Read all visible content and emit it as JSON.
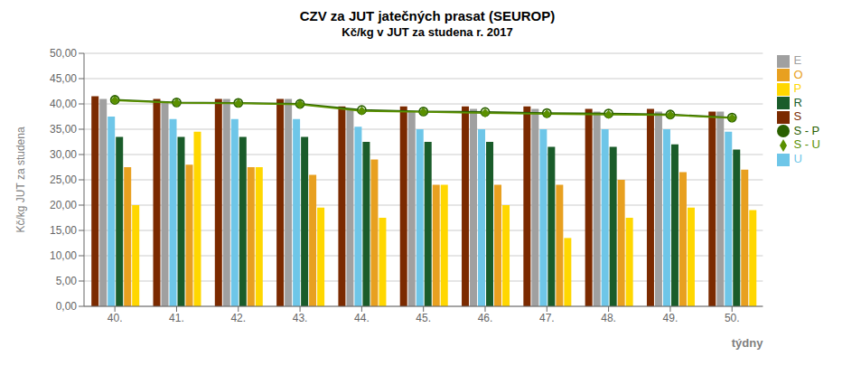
{
  "chart_data": {
    "type": "bar",
    "title": "CZV za JUT jatečných prasat (SEUROP)",
    "subtitle": "Kč/kg v JUT za studena r. 2017",
    "xlabel": "týdny",
    "ylabel": "Kč/kg JUT za studena",
    "categories": [
      "40.",
      "41.",
      "42.",
      "43.",
      "44.",
      "45.",
      "46.",
      "47.",
      "48.",
      "49.",
      "50."
    ],
    "series": [
      {
        "name": "S",
        "type": "bar",
        "color": "#7B2A00",
        "values": [
          41.5,
          41.0,
          41.0,
          41.0,
          39.5,
          39.5,
          39.5,
          39.5,
          39.0,
          39.0,
          38.5
        ]
      },
      {
        "name": "E",
        "type": "bar",
        "color": "#A0A0A0",
        "values": [
          41.0,
          40.5,
          41.0,
          41.0,
          39.0,
          38.5,
          39.0,
          39.0,
          38.5,
          38.5,
          38.5
        ]
      },
      {
        "name": "U",
        "type": "bar",
        "color": "#6EC6E8",
        "values": [
          37.5,
          37.0,
          37.0,
          37.0,
          35.5,
          35.0,
          35.0,
          35.0,
          35.0,
          35.0,
          34.5
        ]
      },
      {
        "name": "R",
        "type": "bar",
        "color": "#1A5C2A",
        "values": [
          33.5,
          33.5,
          33.5,
          33.5,
          32.5,
          32.5,
          32.5,
          31.5,
          31.5,
          32.0,
          31.0
        ]
      },
      {
        "name": "O",
        "type": "bar",
        "color": "#E8A020",
        "values": [
          27.5,
          28.0,
          27.5,
          26.0,
          29.0,
          24.0,
          24.0,
          24.0,
          25.0,
          26.5,
          27.0
        ]
      },
      {
        "name": "P",
        "type": "bar",
        "color": "#FFD700",
        "values": [
          20.0,
          34.5,
          27.5,
          19.5,
          17.5,
          24.0,
          20.0,
          13.5,
          17.5,
          19.5,
          19.0
        ]
      },
      {
        "name": "S - P",
        "type": "line",
        "color": "#2A6000",
        "marker": "circle",
        "values": [
          40.8,
          40.3,
          40.2,
          40.0,
          38.8,
          38.5,
          38.4,
          38.2,
          38.1,
          37.9,
          37.3
        ]
      },
      {
        "name": "S - U",
        "type": "line",
        "color": "#5A9000",
        "marker": "diamond",
        "values": [
          40.7,
          40.2,
          40.1,
          39.9,
          38.6,
          38.4,
          38.2,
          38.0,
          37.9,
          37.8,
          37.2
        ]
      }
    ],
    "ylim": [
      0,
      50
    ],
    "yticks": [
      {
        "value": 0,
        "label": "0,00"
      },
      {
        "value": 5,
        "label": "5,00"
      },
      {
        "value": 10,
        "label": "10,00"
      },
      {
        "value": 15,
        "label": "15,00"
      },
      {
        "value": 20,
        "label": "20,00"
      },
      {
        "value": 25,
        "label": "25,00"
      },
      {
        "value": 30,
        "label": "30,00"
      },
      {
        "value": 35,
        "label": "35,00"
      },
      {
        "value": 40,
        "label": "40,00"
      },
      {
        "value": 45,
        "label": "45,00"
      },
      {
        "value": 50,
        "label": "50,00"
      }
    ],
    "grid": true,
    "legend": "right"
  }
}
